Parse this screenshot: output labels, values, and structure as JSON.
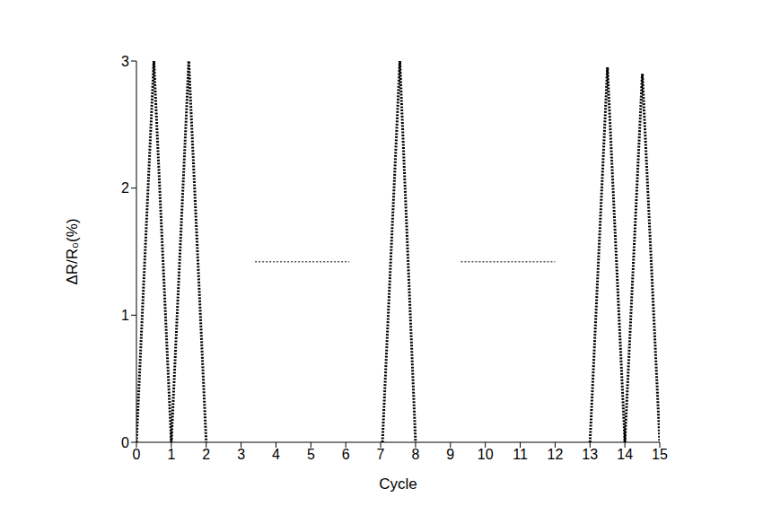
{
  "chart_data": {
    "type": "line",
    "x_label": "Cycle",
    "y_label": "ΔR/R₀(%)",
    "xlim": [
      0,
      15
    ],
    "xticks": [
      0,
      1,
      2,
      3,
      4,
      5,
      6,
      7,
      8,
      9,
      10,
      11,
      12,
      13,
      14,
      15
    ],
    "ylim": [
      0,
      3
    ],
    "yticks": [
      0,
      1,
      2,
      3
    ],
    "grid": false,
    "series": [
      {
        "color": "#000000",
        "line_style": "dotted",
        "x": [
          0,
          0.5,
          1,
          1.5,
          2,
          4.5,
          7.05,
          7.55,
          8,
          10.5,
          13,
          13.5,
          14,
          14.5,
          15
        ],
        "values": [
          0,
          3,
          0,
          3,
          0,
          null,
          0,
          3,
          0,
          null,
          0,
          2.95,
          0,
          2.9,
          0
        ]
      },
      {
        "color": "#000000",
        "line_style": "dotted",
        "x": [
          3.4,
          6.1,
          7.7,
          9.3,
          12.0
        ],
        "values": [
          1.42,
          1.42,
          null,
          1.42,
          1.42
        ]
      }
    ]
  }
}
